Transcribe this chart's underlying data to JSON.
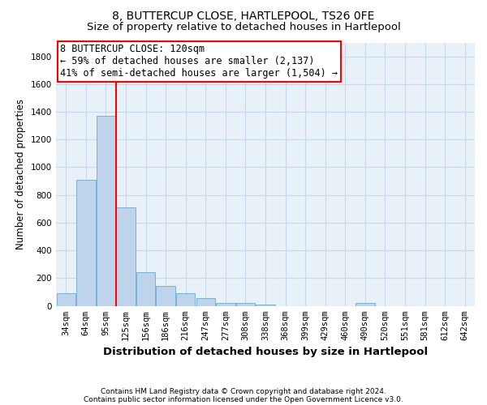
{
  "title": "8, BUTTERCUP CLOSE, HARTLEPOOL, TS26 0FE",
  "subtitle": "Size of property relative to detached houses in Hartlepool",
  "xlabel": "Distribution of detached houses by size in Hartlepool",
  "ylabel": "Number of detached properties",
  "footnote1": "Contains HM Land Registry data © Crown copyright and database right 2024.",
  "footnote2": "Contains public sector information licensed under the Open Government Licence v3.0.",
  "categories": [
    "34sqm",
    "64sqm",
    "95sqm",
    "125sqm",
    "156sqm",
    "186sqm",
    "216sqm",
    "247sqm",
    "277sqm",
    "308sqm",
    "338sqm",
    "368sqm",
    "399sqm",
    "429sqm",
    "460sqm",
    "490sqm",
    "520sqm",
    "551sqm",
    "581sqm",
    "612sqm",
    "642sqm"
  ],
  "values": [
    90,
    910,
    1370,
    710,
    245,
    145,
    90,
    55,
    22,
    18,
    10,
    0,
    0,
    0,
    0,
    20,
    0,
    0,
    0,
    0,
    0
  ],
  "bar_color": "#bdd4eb",
  "bar_edge_color": "#6aaad4",
  "grid_color": "#c8d8ec",
  "ax_bg_color": "#e8f0f8",
  "vline_x": 2.5,
  "annotation_text_line1": "8 BUTTERCUP CLOSE: 120sqm",
  "annotation_text_line2": "← 59% of detached houses are smaller (2,137)",
  "annotation_text_line3": "41% of semi-detached houses are larger (1,504) →",
  "annotation_box_color": "white",
  "annotation_box_edgecolor": "red",
  "vline_color": "red",
  "ylim": [
    0,
    1900
  ],
  "yticks": [
    0,
    200,
    400,
    600,
    800,
    1000,
    1200,
    1400,
    1600,
    1800
  ],
  "bg_color": "white",
  "title_fontsize": 10,
  "subtitle_fontsize": 9.5,
  "xlabel_fontsize": 9.5,
  "ylabel_fontsize": 8.5,
  "tick_fontsize": 7.5,
  "annotation_fontsize": 8.5,
  "footnote_fontsize": 6.5
}
